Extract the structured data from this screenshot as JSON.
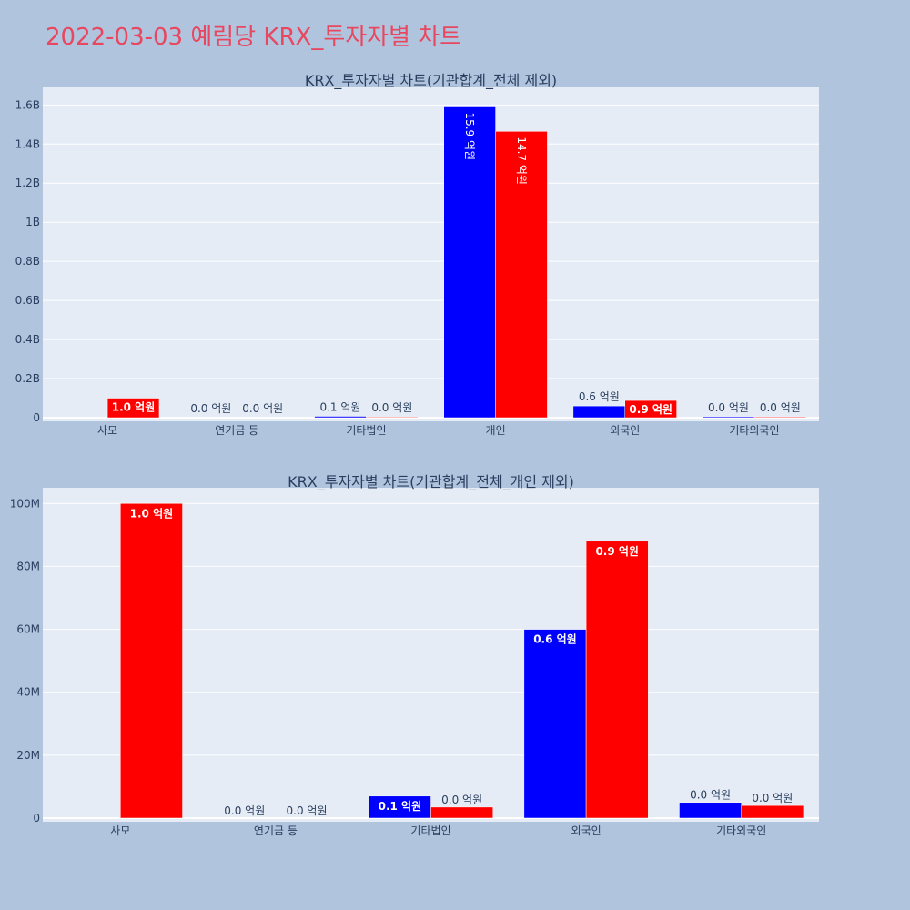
{
  "page": {
    "title": "2022-03-03 예림당 KRX_투자자별 차트"
  },
  "colors": {
    "buy": "#0000ff",
    "sell": "#ff0000",
    "plot_bg": "#e5ecf6",
    "paper_bg": "#b0c4de",
    "title": "#e8475f",
    "text": "#2a3f5f"
  },
  "chart_data": [
    {
      "type": "bar",
      "title": "KRX_투자자별 차트(기관합계_전체 제외)",
      "categories": [
        "사모",
        "연기금 등",
        "기타법인",
        "개인",
        "외국인",
        "기타외국인"
      ],
      "yticks": [
        0,
        200000000,
        400000000,
        600000000,
        800000000,
        1000000000,
        1200000000,
        1400000000,
        1600000000
      ],
      "ytick_labels": [
        "0",
        "0.2B",
        "0.4B",
        "0.6B",
        "0.8B",
        "1B",
        "1.2B",
        "1.4B",
        "1.6B"
      ],
      "ylim": [
        0,
        1690000000
      ],
      "grid": true,
      "series": [
        {
          "color": "#0000ff",
          "values": [
            0,
            0,
            7000000,
            1590000000,
            60000000,
            5000000
          ],
          "labels": [
            "",
            "0.0 억원",
            "0.1 억원",
            "15.9 억원",
            "0.6 억원",
            "0.0 억원"
          ]
        },
        {
          "color": "#ff0000",
          "values": [
            100000000,
            0,
            3500000,
            1465000000,
            88000000,
            4000000
          ],
          "labels": [
            "1.0 억원",
            "0.0 억원",
            "0.0 억원",
            "14.7 억원",
            "0.9 억원",
            "0.0 억원"
          ]
        }
      ]
    },
    {
      "type": "bar",
      "title": "KRX_투자자별 차트(기관합계_전체_개인 제외)",
      "categories": [
        "사모",
        "연기금 등",
        "기타법인",
        "외국인",
        "기타외국인"
      ],
      "yticks": [
        0,
        20000000,
        40000000,
        60000000,
        80000000,
        100000000
      ],
      "ytick_labels": [
        "0",
        "20M",
        "40M",
        "60M",
        "80M",
        "100M"
      ],
      "ylim": [
        0,
        105000000
      ],
      "grid": true,
      "series": [
        {
          "color": "#0000ff",
          "values": [
            0,
            0,
            7000000,
            60000000,
            5000000
          ],
          "labels": [
            "",
            "0.0 억원",
            "0.1 억원",
            "0.6 억원",
            "0.0 억원"
          ]
        },
        {
          "color": "#ff0000",
          "values": [
            100000000,
            0,
            3500000,
            88000000,
            4000000
          ],
          "labels": [
            "1.0 억원",
            "0.0 억원",
            "0.0 억원",
            "0.9 억원",
            "0.0 억원"
          ]
        }
      ]
    }
  ]
}
